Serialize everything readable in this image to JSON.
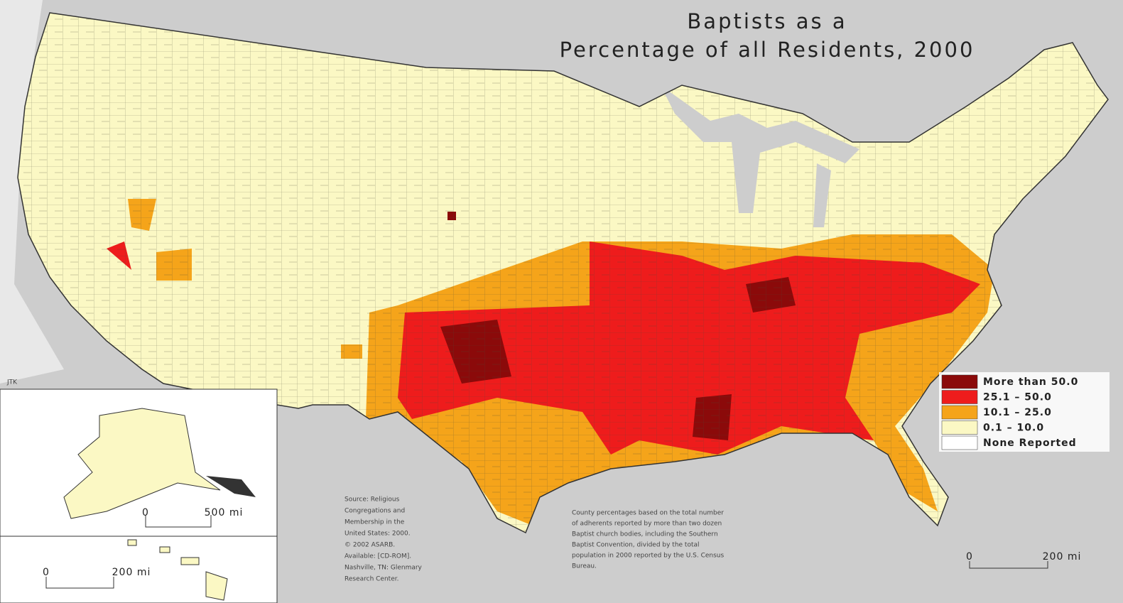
{
  "title": [
    "Baptists as a",
    "Percentage of all Residents, 2000"
  ],
  "legend": [
    {
      "label": "More than 50.0",
      "color": "#8b0a0a"
    },
    {
      "label": "25.1 – 50.0",
      "color": "#ee1c1c"
    },
    {
      "label": "10.1 – 25.0",
      "color": "#f5a41a"
    },
    {
      "label": "0.1 – 10.0",
      "color": "#fbf8c4"
    },
    {
      "label": "None Reported",
      "color": "#ffffff"
    }
  ],
  "source": [
    "Source: Religious",
    "Congregations and",
    "Membership in the",
    "United States: 2000.",
    "© 2002 ASARB.",
    "Available: [CD-ROM].",
    "Nashville, TN: Glenmary",
    "Research Center."
  ],
  "note": [
    "County percentages based on the total number",
    "of adherents reported by more than two dozen",
    "Baptist church bodies, including the Southern",
    "Baptist Convention, divided by the total",
    "population in 2000 reported by the U.S. Census",
    "Bureau."
  ],
  "author": "JTK",
  "scales": {
    "alaska": [
      "0",
      "500 mi"
    ],
    "hawaii": [
      "0",
      "200 mi"
    ],
    "main": [
      "0",
      "200 mi"
    ]
  }
}
